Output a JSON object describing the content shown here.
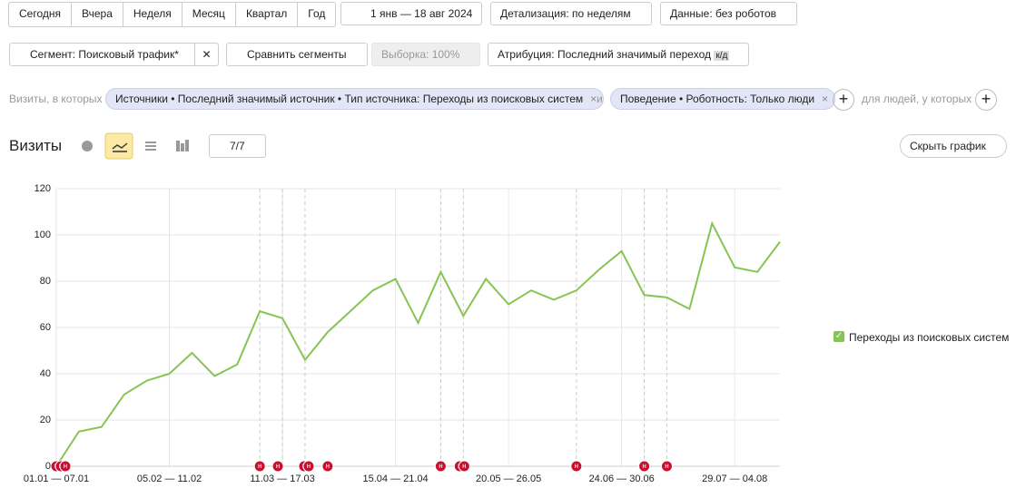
{
  "toolbar": {
    "periods": [
      "Сегодня",
      "Вчера",
      "Неделя",
      "Месяц",
      "Квартал",
      "Год"
    ],
    "date_range": "1 янв — 18 авг 2024",
    "detail": "Детализация: по неделям",
    "data_filter": "Данные: без роботов"
  },
  "segment_bar": {
    "segment": "Сегмент: Поисковый трафик*",
    "compare": "Сравнить сегменты",
    "sample": "Выборка: 100%",
    "attribution": "Атрибуция: Последний значимый переход",
    "attribution_badge": "к/д"
  },
  "filters": {
    "prefix": "Визиты, в которых",
    "chips": [
      "Источники • Последний значимый источник • Тип источника: Переходы из поисковых систем",
      "Поведение • Роботность: Только люди"
    ],
    "joiner": "и",
    "people": "для людей, у которых"
  },
  "chart_header": {
    "title": "Визиты",
    "annotations": "7/7",
    "hide": "Скрыть график",
    "note_icon": "н"
  },
  "chart_data": {
    "type": "line",
    "categories": [
      "01.01 — 07.01",
      null,
      null,
      null,
      null,
      "05.02 — 11.02",
      null,
      null,
      null,
      null,
      "11.03 — 17.03",
      null,
      null,
      null,
      null,
      "15.04 — 21.04",
      null,
      null,
      null,
      null,
      "20.05 — 26.05",
      null,
      null,
      null,
      null,
      "24.06 — 30.06",
      null,
      null,
      null,
      null,
      "29.07 — 04.08",
      null,
      null
    ],
    "series": [
      {
        "name": "Переходы из поисковых систем",
        "color": "#86c453",
        "values": [
          0,
          15,
          17,
          31,
          37,
          40,
          49,
          39,
          44,
          67,
          64,
          46,
          58,
          67,
          76,
          81,
          62,
          84,
          65,
          81,
          70,
          76,
          72,
          76,
          85,
          93,
          74,
          73,
          68,
          105,
          86,
          84,
          97
        ]
      }
    ],
    "ylim": [
      0,
      120
    ],
    "yticks": [
      0,
      20,
      40,
      60,
      80,
      100,
      120
    ],
    "grid": true,
    "legend": "right"
  }
}
